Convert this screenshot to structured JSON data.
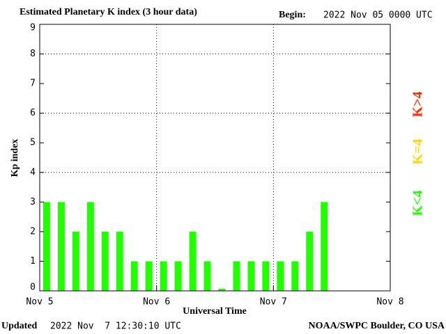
{
  "chart_data": {
    "type": "bar",
    "title": "Estimated Planetary K index (3 hour data)",
    "begin_label": "Begin:",
    "begin": "2022 Nov 05 0000 UTC",
    "y_label": "Kp index",
    "x_label": "Universal Time",
    "updated_label": "Updated",
    "updated": "2022 Nov  7 12:30:10 UTC",
    "source": "NOAA/SWPC Boulder, CO USA",
    "legend": [
      {
        "name": "K>4",
        "color": "#ff2a00"
      },
      {
        "name": "K=4",
        "color": "#ffd700"
      },
      {
        "name": "K<4",
        "color": "#22ff00"
      }
    ],
    "x": [
      0,
      3,
      6,
      9,
      12,
      15,
      18,
      21,
      24,
      27,
      30,
      33,
      36,
      39,
      42,
      45,
      48,
      51,
      54,
      57
    ],
    "bar_width": 3,
    "values": [
      3,
      3,
      2,
      3,
      2,
      2,
      1,
      1,
      1,
      1,
      2,
      1,
      0.07,
      1,
      1,
      1,
      1,
      1,
      2,
      3
    ],
    "color": "#22ff00",
    "xlim": [
      0,
      72
    ],
    "xticks": [
      {
        "value": 0,
        "label": "Nov 5"
      },
      {
        "value": 24,
        "label": "Nov 6"
      },
      {
        "value": 48,
        "label": "Nov 7"
      },
      {
        "value": 72,
        "label": "Nov 8"
      }
    ],
    "ylim": [
      0,
      9
    ],
    "yticks": [
      0,
      1,
      2,
      3,
      4,
      5,
      6,
      7,
      8,
      9
    ],
    "hgrid": [
      4,
      6,
      8
    ],
    "vgrid": [
      24,
      48
    ]
  }
}
